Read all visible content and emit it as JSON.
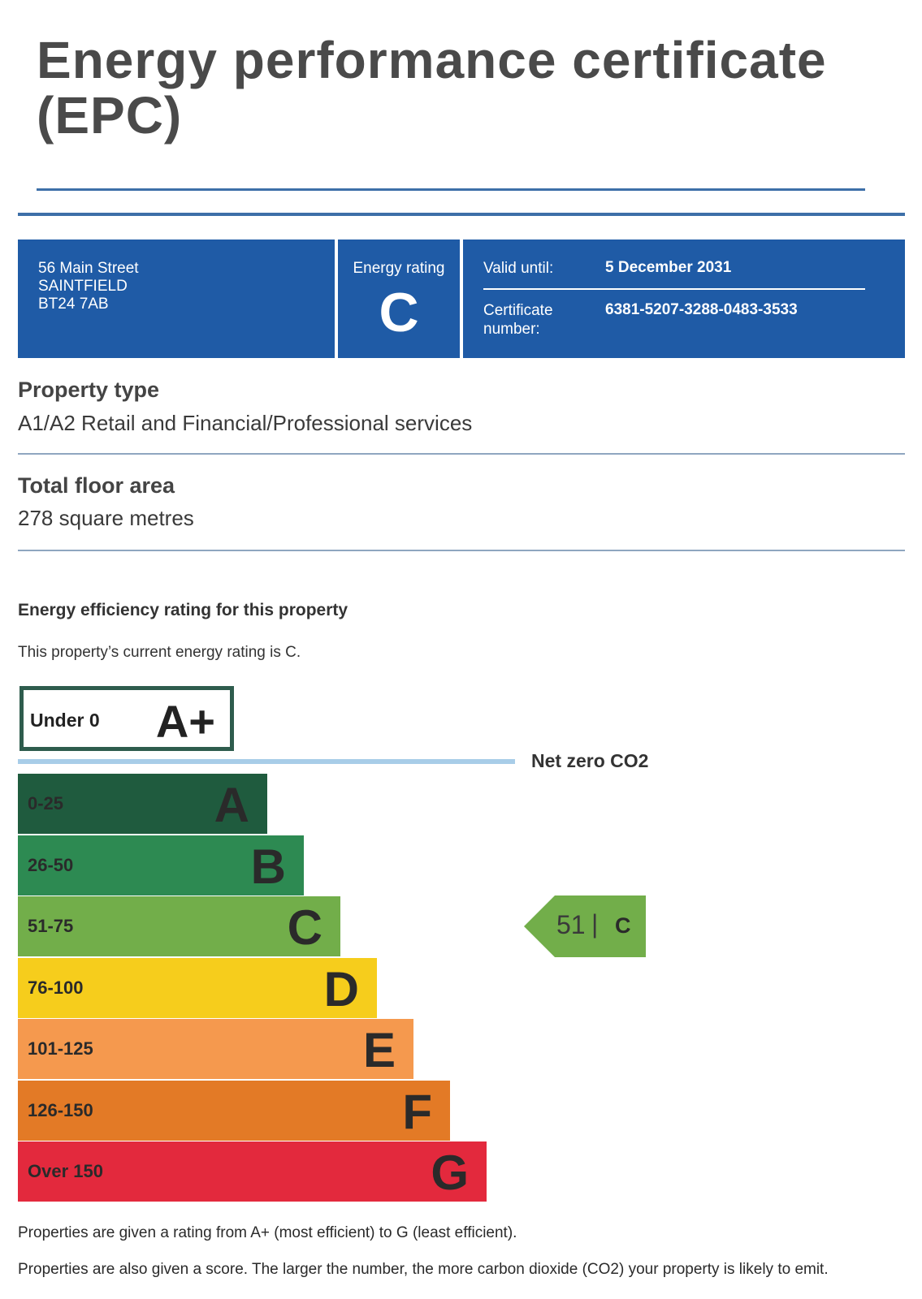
{
  "document": {
    "title": "Energy performance certificate (EPC)"
  },
  "info_bar": {
    "address": [
      "56 Main Street",
      "SAINTFIELD",
      "BT24 7AB"
    ],
    "energy_rating_label": "Energy rating",
    "energy_rating_value": "C",
    "valid_until_label": "Valid until:",
    "valid_until_value": "5 December 2031",
    "certificate_number_label": "Certificate number:",
    "certificate_number_value": "6381-5207-3288-0483-3533"
  },
  "property_type": {
    "heading": "Property type",
    "value": "A1/A2 Retail and Financial/Professional services"
  },
  "floor_area": {
    "heading": "Total floor area",
    "value": "278 square metres"
  },
  "efficiency": {
    "heading": "Energy efficiency rating for this property",
    "sentence": "This property’s current energy rating is C.",
    "aplus": {
      "range": "Under 0",
      "letter": "A+"
    },
    "net_zero_label": "Net zero CO2",
    "bands": [
      {
        "range": "0-25",
        "letter": "A",
        "color": "#1f5b3e"
      },
      {
        "range": "26-50",
        "letter": "B",
        "color": "#2d8a52"
      },
      {
        "range": "51-75",
        "letter": "C",
        "color": "#72ae4a"
      },
      {
        "range": "76-100",
        "letter": "D",
        "color": "#f6cd1c"
      },
      {
        "range": "101-125",
        "letter": "E",
        "color": "#f5994e"
      },
      {
        "range": "126-150",
        "letter": "F",
        "color": "#e37a26"
      },
      {
        "range": "Over 150",
        "letter": "G",
        "color": "#e3293d"
      }
    ],
    "current": {
      "score": "51",
      "separator": "|",
      "letter": "C",
      "color": "#72ae4a"
    }
  },
  "footer": {
    "line1": "Properties are given a rating from A+ (most efficient) to G (least efficient).",
    "line2": "Properties are also given a score. The larger the number, the more carbon dioxide (CO2) your property is likely to emit."
  }
}
